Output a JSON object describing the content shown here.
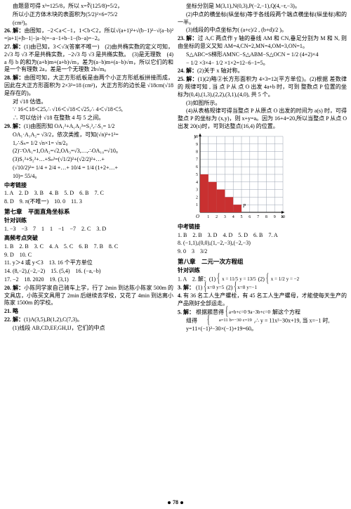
{
  "left_col": {
    "l1": "由题意可得 x³=125/8，所以 x=∛(125/8)=5/2，",
    "l2": "所以小正方体木块的表面积为(5/2)²×6=75/2",
    "l3": "(cm²)。",
    "p26_tag": "26. 解：",
    "p26_body": "由图知，−2＜a＜−1，1＜b＜2，所以√(a+1)²+√(b−1)²−√(a−b)²=|a+1|+|b−1|−|a−b|=−a−1+b−1−(b−a)=−2。",
    "p27_tag": "27. 解：",
    "p27a": "(1)由已知，3＜√3(答案不唯一)　(2)由共椭实数的定义可知，2√3 与 √3 不是共椭实数，−2√3 与 √3 是共椭实数。　(3)是无理数　(4)a 与 b 的和为(a+b)m+(a+b)√m，差为(a−b)m+(a−b)√m，所以它们的和是一个有理数 2a，差是一个无理数 2b√m。",
    "p28_tag": "28. 解：",
    "p28_body": "由图可知，大正方形纸板是由两个小正方形纸板拼接而成，因此在大正方形面积为 2×3²=18 (cm²)，大正方形的边长是 √18cm(√18 是存在的)。",
    "p28_b": "对 √18 估值。",
    "p28_c": "∵ 16＜18＜25,∴ √16＜√18＜√25,∴ 4＜√18＜5,",
    "p28_d": "∴ 可以估计 √18 在整数 4 与 5 之间。",
    "p29_tag": "29. 解：",
    "p29a": "(1)由图形知 OA₁²+A₁A₂²=S₁²,∴S₁= 1/2",
    "p29b": "OA₁·A₁A₂= √3/2，依次类推，可知(√n)²+1²=",
    "p29c": "1,∴Sₙ= 1/2 √n×1= √n/2。",
    "p29d": "(2)∵OA₁=1,OA₂=√2,OA₃=√3,…,∴OA₁₀=√10。",
    "p29e": "(3)S₁²+S₂²+…+Sₙ²=(√1/2)²+(√2/2)²+…+",
    "p29f": "(√10/2)²= 1/4 + 2/4 +…+ 10/4 = 1/4 (1+2+…+",
    "p29g": "10)= 55/4。",
    "zklj": "中考链接",
    "zk1": "1. A　2. D　3. B　4. B　5. D　6. B　7. C",
    "zk2": "8. D　9. π(不唯一)　10. 0　11. 3",
    "ch7": "第七章　平面直角坐标系",
    "zdxl": "针对训练",
    "zd1": "1. −3　−3　7　1　1　−1　−7　2. C　3. D",
    "gpkd": "高频考点突破",
    "gp1": "1. B　2. B　3. C　4. A　5. C　6. B　7. B　8. C",
    "gp2": "9. D　10. C",
    "gp3": "11. y＞4 或 y＜3　13. 16 个平方单位",
    "gp4": "14. (8,−2),(−2,−2)　15. (5,4)　16. (−a,−b)",
    "gp5": "17. −2　18. 2020　19. (3,1)",
    "p20_tag": "20. 解：",
    "p20_body": "小陈同学家自己骑车上学，行了 2min 到达陈小陈家 500m 的文具店，小陈买文具用了 2min 后继续去学校，又花了 4min 到达离小陈家 1500m 的学校。",
    "p21_tag": "21. 略",
    "p22_tag": "22. 解：",
    "p22_body": "(1)A(3,5),B(1,2),C(7,3)。",
    "p22_b": "(1)线段 AB,CD,EF,GH,IJ，它们的中点"
  },
  "right_col": {
    "r1": "坐标分别是 M(3,1),N(0,3),P(−2,−1),Q(4,−r,−3)。",
    "r2": "(2)中点的横坐标(纵坐标)等于各线段两个端点横坐标(纵坐标)和的一半。",
    "r3": "(3)线段的中点坐标为( (a+c)/2 , (b+d)/2 )。",
    "p23_tag": "23. 解：",
    "p23_body": "过 A,C 两点作 y 轴的垂线 AM 和 CN,垂足分别为 M 和 N, 则由坐标的意义又知 AM=4,CN=2,MN=4,OM=3,ON=1。",
    "p23_b": "S△ABC=S梯形AMNC−S△ABM−S△OCN = 1/2 (4+2)×4",
    "p23_c": "− 1/2 ×3×4− 1/2 ×1×2=12−6−1=5。",
    "p24_tag": "24. 解：",
    "p24_body": "(2)关于 x 轴对称。",
    "p25_tag": "25. 解：",
    "p25a": "(1)(2)略②长方形面积为 4×3=12(平方单位)。(2)根据 差数律 的 规律可知 , 当 点 P 从 点 O 出发 4a+b 时，可到 整数点 P 位置的坐标为(0,4),(1,3),(2,2),(3,1),(4,0), 共 5 个。",
    "p25b": "(3)如图所示。",
    "p25c": "(4)从表格规律可得当整点 P 从原点 O 出发的时间为 a(s) 时，可得整点 P 的坐标为 (x,y)，则 x+y=a。因为 16+4=20,所以当整点 P 从点 O 出发 20(s)时，可到达整点(16,4) 的位置。",
    "zklj": "中考链接",
    "zk1": "1. B　2. B　3. D　4. D　5. D　6. B　7. A",
    "zk2": "8. (−1,1),(0,0),(1,−2,−3),(−2,−3)",
    "zk3": "9. 0　3　3/2",
    "ch8": "第八章　二元一次方程组",
    "zdxl": "针对训练",
    "zd1a": "1. A　2. 解：(1)",
    "zd1b": "x = 11/5",
    "zd1c": "y = 13/5",
    "zd1d": "(2)",
    "zd1e": "x = 1/2",
    "zd1f": "y = −2",
    "p3_tag": "3. 解：",
    "p3a": "(1)",
    "p3b": "x=0",
    "p3c": "(2)",
    "p3d": "x=0",
    "p3e": "y=5",
    "p3f": "y=−1",
    "p4_tag": "4.",
    "p4_body": "有 36 名工人生产螺栓，有 45 名工人生产螺母，才能使每天生产的产品刚好全部运走。",
    "p5_tag": "5. 解：",
    "p5a": "根据题意得 ",
    "p5b": "a+b+c=0",
    "p5c": "9a−3b+c=0",
    "p5d": " 解这个方程",
    "p5e": "组得 ",
    "p5f": "a=11",
    "p5g": "b=−30",
    "p5h": ",∴ y = 11x²−30x+19, 当 x=−1 时,",
    "p5i": "c=19",
    "p5j": "y=11×(−1)²−30×(−1)+19=60。"
  },
  "chart": {
    "width": 140,
    "height": 128,
    "grid_color": "#9aa3b0",
    "axis_color": "#000",
    "bar_color": "#c93030",
    "xmax": 10,
    "ymax": 10,
    "background": "#ffffff",
    "bars": [
      {
        "x": 0,
        "h": 5
      },
      {
        "x": 1,
        "h": 4
      },
      {
        "x": 2,
        "h": 3
      },
      {
        "x": 3,
        "h": 2
      },
      {
        "x": 4,
        "h": 1
      },
      {
        "x": 5,
        "h": 0
      }
    ],
    "xticks": [
      "1",
      "2",
      "3",
      "4",
      "5",
      "6",
      "7",
      "8",
      "9",
      "10"
    ],
    "yticks": [
      "1",
      "2",
      "3",
      "4",
      "5",
      "6",
      "7",
      "8",
      "9",
      "10"
    ]
  },
  "page_number": "78"
}
